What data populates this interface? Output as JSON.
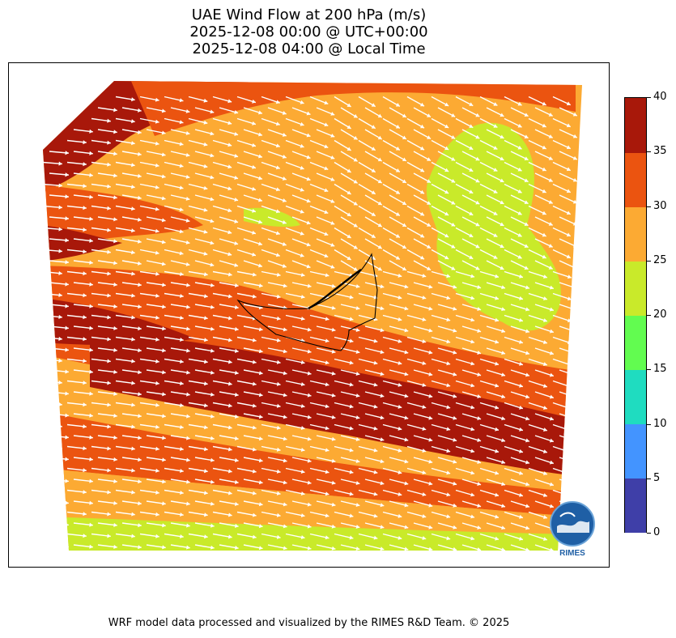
{
  "title": {
    "line1": "UAE Wind Flow at 200 hPa (m/s)",
    "line2": "2025-12-08 00:00 @ UTC+00:00",
    "line3": "2025-12-08 04:00 @ Local Time"
  },
  "colorbar": {
    "ticks": [
      "0",
      "5",
      "10",
      "15",
      "20",
      "25",
      "30",
      "35",
      "40"
    ],
    "bins": [
      {
        "from": 0,
        "to": 5,
        "color": "#3f3fa8"
      },
      {
        "from": 5,
        "to": 10,
        "color": "#4394ff"
      },
      {
        "from": 10,
        "to": 15,
        "color": "#1fdcc0"
      },
      {
        "from": 15,
        "to": 20,
        "color": "#62fc50"
      },
      {
        "from": 20,
        "to": 25,
        "color": "#c9ea2a"
      },
      {
        "from": 25,
        "to": 30,
        "color": "#fcaa33"
      },
      {
        "from": 30,
        "to": 35,
        "color": "#eb5410"
      },
      {
        "from": 35,
        "to": 40,
        "color": "#a8180a"
      }
    ]
  },
  "map": {
    "wind_arrow_color": "#ffffff",
    "boundary_color": "#000000",
    "dominant_wind_direction": "west-northwest to east-southeast"
  },
  "logo": {
    "text": "RIMES"
  },
  "footer": "WRF model data processed and visualized by the RIMES R&D Team. © 2025"
}
